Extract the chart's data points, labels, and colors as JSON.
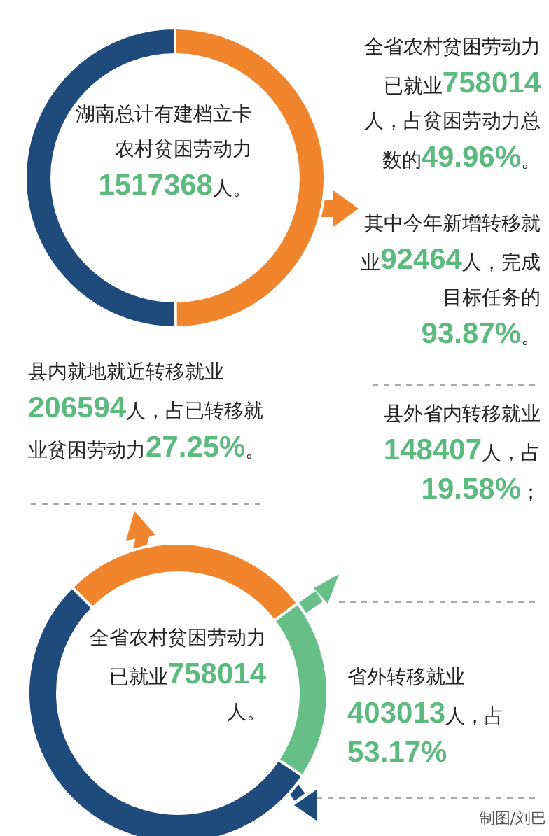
{
  "chart_data": [
    {
      "type": "donut",
      "title": "湖南总计有建档立卡农村贫困劳动力1517368人。",
      "categories": [
        null,
        null
      ],
      "values": [
        49.96,
        50.04
      ],
      "colors": [
        "#f0852d",
        "#1f4a7c"
      ],
      "annotations": [
        "全省农村贫困劳动力已就业758014人，占贫困劳动力总数的49.96%。",
        "其中今年新增转移就业92464人，完成目标任务的93.87%。"
      ]
    },
    {
      "type": "donut",
      "title": "全省农村贫困劳动力已就业758014人。",
      "categories": [
        null,
        null,
        null
      ],
      "values": [
        27.25,
        19.58,
        53.17
      ],
      "colors": [
        "#f0852d",
        "#66bf87",
        "#1f4a7c"
      ],
      "annotations": [
        "县内就地就近转移就业206594人，占已转移就业贫困劳动力27.25%。",
        "县外省内转移就业148407人，占19.58%；",
        "省外转移就业403013人，占53.17%",
        "制图/刘巴"
      ]
    }
  ]
}
